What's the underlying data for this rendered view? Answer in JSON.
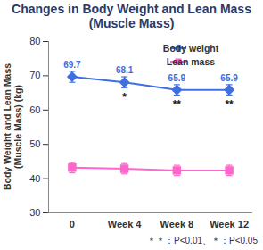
{
  "chart_data": {
    "type": "line",
    "title": "Changes in Body Weight and Lean Mass (Muscle Mass)",
    "y_label": "Body Weight and Lean Mass (Muscle Mass) (kg)",
    "categories": [
      "0",
      "Week 4",
      "Week 8",
      "Week 12"
    ],
    "series": [
      {
        "name": "Body weight",
        "color": "#3f6fe0",
        "marker": "diamond",
        "data_labels": true,
        "values": [
          69.7,
          68.1,
          65.9,
          65.9
        ],
        "errors": [
          1.6,
          1.6,
          1.5,
          1.5
        ],
        "significance": [
          null,
          "*",
          "**",
          "**"
        ]
      },
      {
        "name": "Lean mass",
        "color": "#ff66cc",
        "marker": "square",
        "values": [
          43.2,
          42.9,
          42.4,
          42.4
        ],
        "errors": [
          1.5,
          1.5,
          1.5,
          1.5
        ]
      }
    ],
    "ylim": [
      30,
      80
    ],
    "yticks": [
      30,
      40,
      50,
      60,
      70,
      80
    ],
    "legend": "top-right",
    "note": "＊＊：P<0.01、＊：P<0.05"
  }
}
